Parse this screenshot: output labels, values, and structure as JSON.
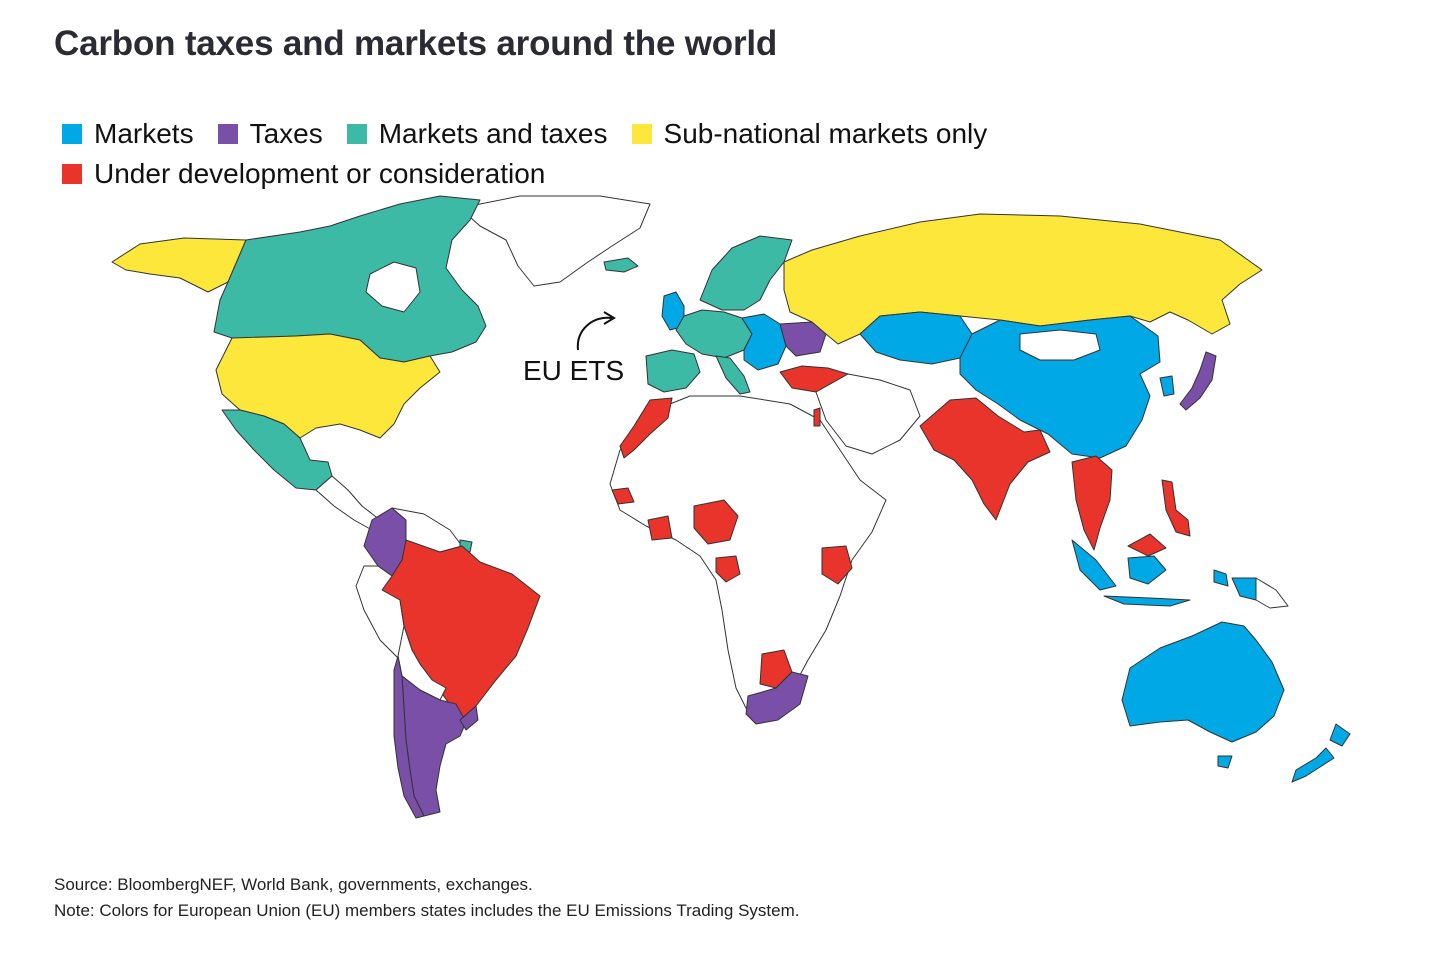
{
  "title": "Carbon taxes and markets around the world",
  "legend": [
    {
      "label": "Markets",
      "color": "#00a9e6"
    },
    {
      "label": "Taxes",
      "color": "#7a4fa8"
    },
    {
      "label": "Markets and taxes",
      "color": "#3dbaa6"
    },
    {
      "label": "Sub-national markets only",
      "color": "#fde73a"
    },
    {
      "label": "Under development or consideration",
      "color": "#e8342a"
    }
  ],
  "callout": "EU ETS",
  "footnotes": {
    "source": "Source: BloombergNEF, World Bank, governments, exchanges.",
    "note": "Note: Colors for European Union (EU) members states includes the EU Emissions Trading System."
  },
  "regions": [
    {
      "name": "Alaska",
      "status": "Sub-national markets only"
    },
    {
      "name": "Canada",
      "status": "Markets and taxes"
    },
    {
      "name": "United States",
      "status": "Sub-national markets only"
    },
    {
      "name": "Mexico",
      "status": "Markets and taxes"
    },
    {
      "name": "Colombia",
      "status": "Taxes"
    },
    {
      "name": "Brazil",
      "status": "Under development or consideration"
    },
    {
      "name": "Argentina",
      "status": "Taxes"
    },
    {
      "name": "Chile",
      "status": "Taxes"
    },
    {
      "name": "Uruguay",
      "status": "Taxes"
    },
    {
      "name": "Russia",
      "status": "Sub-national markets only"
    },
    {
      "name": "Kazakhstan",
      "status": "Markets"
    },
    {
      "name": "China",
      "status": "Markets"
    },
    {
      "name": "India",
      "status": "Under development or consideration"
    },
    {
      "name": "Australia",
      "status": "Markets"
    },
    {
      "name": "New Zealand",
      "status": "Markets"
    },
    {
      "name": "Japan",
      "status": "Taxes"
    },
    {
      "name": "Korea",
      "status": "Markets"
    },
    {
      "name": "Turkey",
      "status": "Under development or consideration"
    },
    {
      "name": "South Africa",
      "status": "Taxes"
    },
    {
      "name": "Nigeria",
      "status": "Under development or consideration"
    },
    {
      "name": "Morocco",
      "status": "Under development or consideration"
    },
    {
      "name": "Kenya",
      "status": "Under development or consideration"
    },
    {
      "name": "Indonesia",
      "status": "Markets"
    },
    {
      "name": "Thailand",
      "status": "Under development or consideration"
    },
    {
      "name": "Philippines",
      "status": "Under development or consideration"
    },
    {
      "name": "Ukraine",
      "status": "Taxes"
    },
    {
      "name": "Greenland",
      "status": "None"
    },
    {
      "name": "Scandinavia",
      "status": "Markets and taxes"
    },
    {
      "name": "Iberia",
      "status": "Markets and taxes"
    }
  ],
  "colors": {
    "markets": "#00a9e6",
    "taxes": "#7a4fa8",
    "markets_and_taxes": "#3dbaa6",
    "subnational": "#fde73a",
    "under_development": "#e8342a",
    "none": "#ffffff"
  }
}
